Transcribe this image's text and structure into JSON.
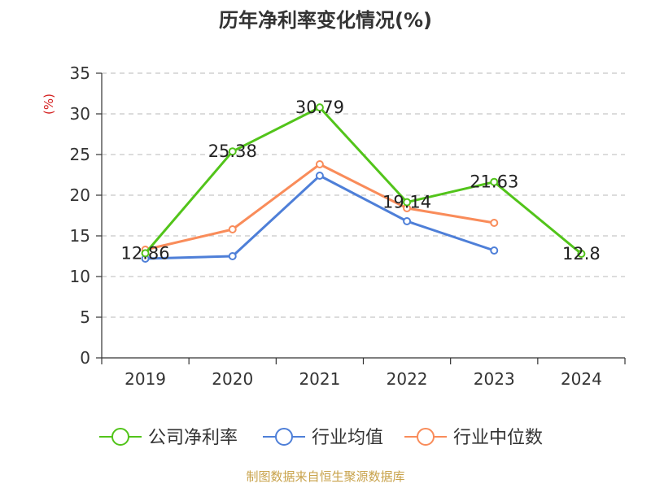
{
  "chart_data": {
    "type": "line",
    "title": "历年净利率变化情况(%)",
    "ylabel": "(%)",
    "xlabel": "",
    "categories": [
      "2019",
      "2020",
      "2021",
      "2022",
      "2023",
      "2024"
    ],
    "ylim": [
      0,
      35
    ],
    "yticks": [
      0,
      5,
      10,
      15,
      20,
      25,
      30,
      35
    ],
    "grid": true,
    "legend_position": "bottom",
    "series": [
      {
        "name": "公司净利率",
        "color": "#52c41a",
        "values": [
          12.86,
          25.38,
          30.79,
          19.14,
          21.63,
          12.8
        ],
        "labels": [
          "12.86",
          "25.38",
          "30.79",
          "19.14",
          "21.63",
          "12.8"
        ]
      },
      {
        "name": "行业均值",
        "color": "#4e7fd8",
        "values": [
          12.2,
          12.5,
          22.4,
          16.8,
          13.2,
          null
        ]
      },
      {
        "name": "行业中位数",
        "color": "#f98c5a",
        "values": [
          13.3,
          15.8,
          23.8,
          18.4,
          16.6,
          null
        ]
      }
    ]
  },
  "footer": {
    "source": "制图数据来自恒生聚源数据库",
    "color": "#c8a24a"
  }
}
